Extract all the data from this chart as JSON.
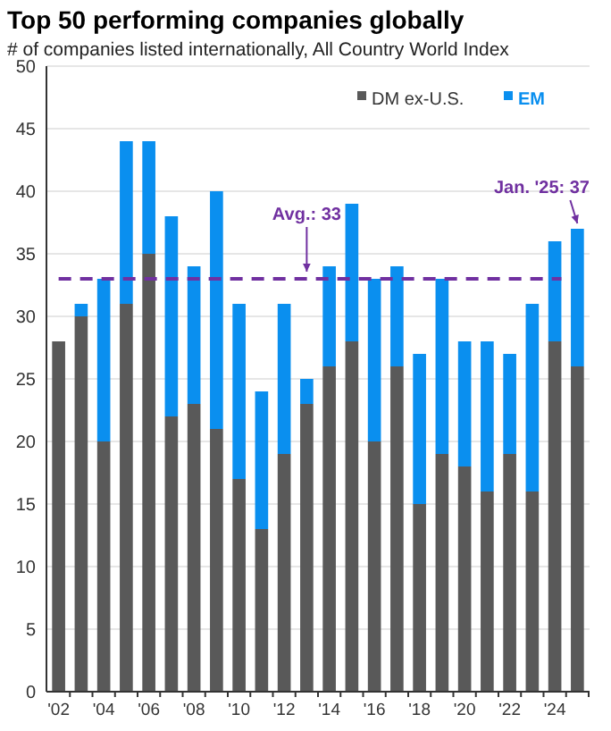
{
  "chart_data": {
    "type": "bar",
    "stacked": true,
    "title": "Top 50 performing companies globally",
    "subtitle": "# of companies listed internationally, All Country World Index",
    "categories": [
      "'02",
      null,
      "'04",
      null,
      "'06",
      null,
      "'08",
      null,
      "'10",
      null,
      "'12",
      null,
      "'14",
      null,
      "'16",
      null,
      "'18",
      null,
      "'20",
      null,
      "'22",
      null,
      "'24",
      null
    ],
    "series": [
      {
        "name": "DM ex-U.S.",
        "color": "#595959",
        "values": [
          28,
          30,
          20,
          31,
          35,
          22,
          23,
          21,
          17,
          13,
          19,
          23,
          26,
          28,
          20,
          26,
          15,
          19,
          18,
          16,
          19,
          16,
          28,
          26
        ]
      },
      {
        "name": "EM",
        "color": "#0a8fef",
        "values": [
          0,
          1,
          13,
          13,
          9,
          16,
          11,
          19,
          14,
          11,
          12,
          2,
          8,
          11,
          13,
          8,
          12,
          14,
          10,
          12,
          8,
          15,
          8,
          11
        ]
      }
    ],
    "ylim": [
      0,
      50
    ],
    "yticks": [
      0,
      5,
      10,
      15,
      20,
      25,
      30,
      35,
      40,
      45,
      50
    ],
    "grid": "y",
    "legend": "top right",
    "ref_lines": [
      {
        "axis": "y",
        "value": 33,
        "label": "Avg.: 33",
        "color": "#7030a0",
        "line_style": "dashed"
      }
    ],
    "annotations": [
      "Jan. '25: 37"
    ]
  }
}
